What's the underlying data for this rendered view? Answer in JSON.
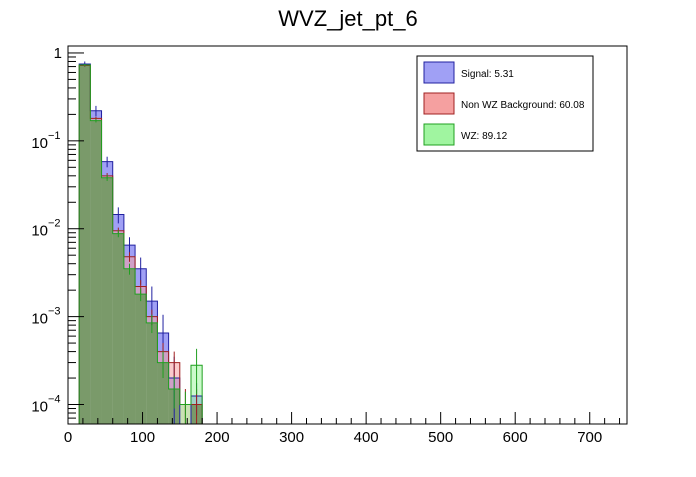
{
  "chart_data": {
    "type": "bar",
    "title": "WVZ_jet_pt_6",
    "xlabel": "",
    "ylabel": "",
    "xlim": [
      0,
      750
    ],
    "ylim": [
      6e-05,
      1.2
    ],
    "log_y": true,
    "grid": false,
    "legend_position": "top-right",
    "x_ticks": [
      0,
      100,
      200,
      300,
      400,
      500,
      600,
      700
    ],
    "y_ticks": [
      {
        "value": 1,
        "base": "1",
        "exp": ""
      },
      {
        "value": 0.1,
        "base": "10",
        "exp": "−1"
      },
      {
        "value": 0.01,
        "base": "10",
        "exp": "−2"
      },
      {
        "value": 0.001,
        "base": "10",
        "exp": "−3"
      },
      {
        "value": 0.0001,
        "base": "10",
        "exp": "−4"
      }
    ],
    "bin_edges": [
      15,
      30,
      45,
      60,
      75,
      90,
      105,
      120,
      135,
      150,
      165,
      180
    ],
    "series": [
      {
        "name": "Signal: 5.31",
        "fill": "#a0a0f5",
        "stroke": "#2020a0",
        "values": [
          0.75,
          0.22,
          0.058,
          0.0145,
          0.0065,
          0.0035,
          0.0015,
          0.00065,
          0.0002,
          6e-05,
          0.000125
        ],
        "errors": [
          0.05,
          0.03,
          0.008,
          0.003,
          0.0015,
          0.0012,
          0.0007,
          0.0004,
          0.00015,
          0.0,
          5e-05
        ]
      },
      {
        "name": "Non WZ Background: 60.08",
        "fill": "#f5a0a0",
        "stroke": "#a02020",
        "values": [
          0.72,
          0.18,
          0.04,
          0.0095,
          0.0048,
          0.0022,
          0.001,
          0.0004,
          0.0003,
          0.0001,
          0.0001
        ],
        "errors": [
          0.02,
          0.008,
          0.003,
          0.0008,
          0.0006,
          0.0004,
          0.0002,
          0.0001,
          0.0001,
          5e-05,
          5e-05
        ]
      },
      {
        "name": "WZ: 89.12",
        "fill": "#a0f5a0",
        "stroke": "#20a020",
        "values": [
          0.73,
          0.17,
          0.038,
          0.0088,
          0.0035,
          0.0018,
          0.00085,
          0.0003,
          0.00015,
          0.0001,
          0.00028
        ],
        "errors": [
          0.02,
          0.008,
          0.003,
          0.0008,
          0.0005,
          0.0003,
          0.0002,
          0.0001,
          6e-05,
          4e-05,
          0.00015
        ]
      }
    ],
    "overlap_fill": "#7a9a6a"
  }
}
